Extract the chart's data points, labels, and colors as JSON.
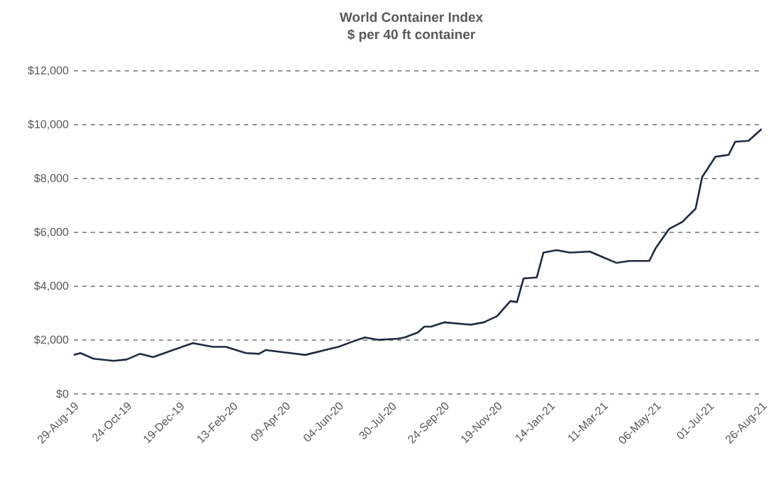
{
  "chart_data": {
    "type": "line",
    "title": "World Container Index",
    "subtitle": "$ per 40 ft container",
    "x": [
      "2019-08-29",
      "2019-09-05",
      "2019-09-19",
      "2019-10-10",
      "2019-10-24",
      "2019-11-07",
      "2019-11-21",
      "2019-12-12",
      "2020-01-02",
      "2020-01-23",
      "2020-02-06",
      "2020-02-27",
      "2020-03-12",
      "2020-03-19",
      "2020-04-09",
      "2020-04-30",
      "2020-05-21",
      "2020-06-04",
      "2020-06-18",
      "2020-07-02",
      "2020-07-16",
      "2020-08-06",
      "2020-08-13",
      "2020-08-27",
      "2020-09-03",
      "2020-09-10",
      "2020-09-24",
      "2020-10-22",
      "2020-11-05",
      "2020-11-19",
      "2020-12-03",
      "2020-12-10",
      "2020-12-17",
      "2020-12-31",
      "2021-01-07",
      "2021-01-21",
      "2021-02-04",
      "2021-02-25",
      "2021-03-11",
      "2021-03-25",
      "2021-04-08",
      "2021-04-29",
      "2021-05-06",
      "2021-05-20",
      "2021-06-03",
      "2021-06-17",
      "2021-06-24",
      "2021-07-08",
      "2021-07-22",
      "2021-07-29",
      "2021-08-12",
      "2021-08-26"
    ],
    "series": [
      {
        "color": "#1f2a44",
        "values": [
          1450,
          1520,
          1310,
          1230,
          1280,
          1490,
          1370,
          1630,
          1890,
          1750,
          1750,
          1520,
          1490,
          1630,
          1540,
          1450,
          1630,
          1750,
          1930,
          2100,
          2010,
          2050,
          2100,
          2280,
          2500,
          2500,
          2660,
          2570,
          2660,
          2890,
          3450,
          3410,
          4290,
          4330,
          5250,
          5340,
          5250,
          5290,
          5080,
          4870,
          4940,
          4940,
          5430,
          6130,
          6390,
          6880,
          8060,
          8810,
          8880,
          9370,
          9400,
          9840
        ]
      }
    ],
    "xlim": [
      "2019-08-29",
      "2021-08-26"
    ],
    "xticks": [
      {
        "value": "2019-08-29",
        "label": "29-Aug-19"
      },
      {
        "value": "2019-10-24",
        "label": "24-Oct-19"
      },
      {
        "value": "2019-12-19",
        "label": "19-Dec-19"
      },
      {
        "value": "2020-02-13",
        "label": "13-Feb-20"
      },
      {
        "value": "2020-04-09",
        "label": "09-Apr-20"
      },
      {
        "value": "2020-06-04",
        "label": "04-Jun-20"
      },
      {
        "value": "2020-07-30",
        "label": "30-Jul-20"
      },
      {
        "value": "2020-09-24",
        "label": "24-Sep-20"
      },
      {
        "value": "2020-11-19",
        "label": "19-Nov-20"
      },
      {
        "value": "2021-01-14",
        "label": "14-Jan-21"
      },
      {
        "value": "2021-03-11",
        "label": "11-Mar-21"
      },
      {
        "value": "2021-05-06",
        "label": "06-May-21"
      },
      {
        "value": "2021-07-01",
        "label": "01-Jul-21"
      },
      {
        "value": "2021-08-26",
        "label": "26-Aug-21"
      }
    ],
    "ylim": [
      0,
      12000
    ],
    "yticks": [
      {
        "value": 0,
        "label": "$0"
      },
      {
        "value": 2000,
        "label": "$2,000"
      },
      {
        "value": 4000,
        "label": "$4,000"
      },
      {
        "value": 6000,
        "label": "$6,000"
      },
      {
        "value": 8000,
        "label": "$8,000"
      },
      {
        "value": 10000,
        "label": "$10,000"
      },
      {
        "value": 12000,
        "label": "$12,000"
      }
    ],
    "grid": "y",
    "marker": "none",
    "line_style": "solid"
  }
}
